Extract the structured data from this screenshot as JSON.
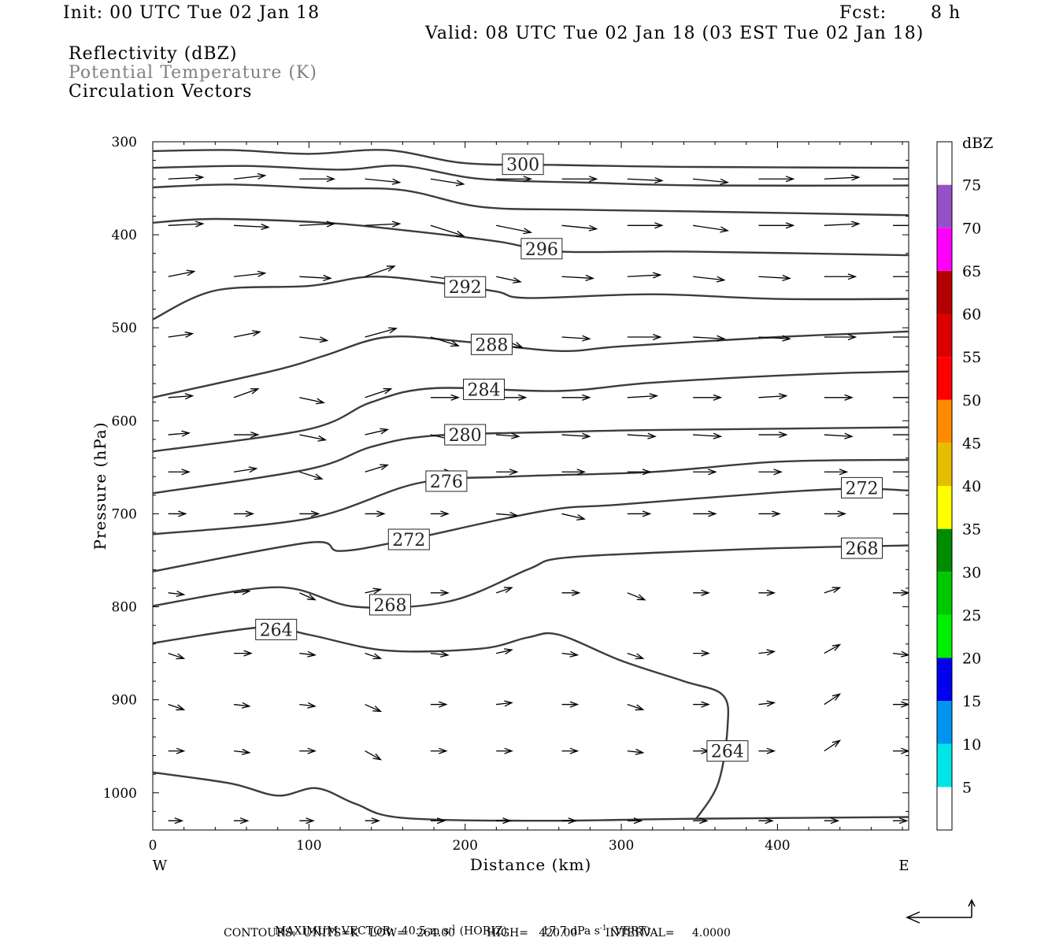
{
  "header": {
    "init": "Init: 00 UTC Tue 02 Jan 18",
    "fcst_label": "Fcst:",
    "fcst_value": "8 h",
    "valid": "Valid: 08 UTC Tue 02 Jan 18 (03 EST Tue 02 Jan 18)"
  },
  "fields": {
    "reflectivity": "Reflectivity (dBZ)",
    "theta": "Potential Temperature (K)",
    "vectors": "Circulation Vectors"
  },
  "footer": {
    "max_vector_label": "MAXIMUM VECTOR:",
    "horiz_value": "40.5 m s",
    "horiz_unit_label": "(HORIZ)",
    "vert_value": "17.7 dPa s",
    "vert_unit_label": "(VERT)",
    "exponent": "-1",
    "contours_line": "CONTOURS:  UNITS=K   LOW=   264.00         HIGH=   420.00        INTERVAL=     4.0000"
  },
  "chart_data": {
    "type": "line",
    "xlabel": "Distance (km)",
    "ylabel": "Pressure (hPa)",
    "xlim": [
      0,
      484
    ],
    "ylim": [
      300,
      1040
    ],
    "y_reversed": true,
    "x_ticks": [
      0,
      100,
      200,
      300,
      400
    ],
    "y_ticks": [
      300,
      400,
      500,
      600,
      700,
      800,
      900,
      1000
    ],
    "x_end_labels": {
      "left": "W",
      "right": "E"
    },
    "grid": false,
    "series": [
      {
        "name": "300",
        "values": [
          [
            0,
            310
          ],
          [
            50,
            309
          ],
          [
            100,
            313
          ],
          [
            150,
            309
          ],
          [
            200,
            323
          ],
          [
            260,
            325
          ],
          [
            340,
            327
          ],
          [
            484,
            328
          ]
        ]
      },
      {
        "name": "",
        "values": [
          [
            0,
            328
          ],
          [
            60,
            326
          ],
          [
            120,
            330
          ],
          [
            160,
            326
          ],
          [
            210,
            340
          ],
          [
            280,
            344
          ],
          [
            350,
            347
          ],
          [
            484,
            347
          ]
        ]
      },
      {
        "name": "",
        "values": [
          [
            0,
            349
          ],
          [
            50,
            346
          ],
          [
            110,
            350
          ],
          [
            160,
            352
          ],
          [
            210,
            370
          ],
          [
            270,
            373
          ],
          [
            350,
            375
          ],
          [
            484,
            379
          ]
        ]
      },
      {
        "name": "296",
        "values": [
          [
            0,
            387
          ],
          [
            40,
            383
          ],
          [
            110,
            387
          ],
          [
            160,
            395
          ],
          [
            220,
            407
          ],
          [
            260,
            418
          ],
          [
            340,
            418
          ],
          [
            484,
            422
          ]
        ]
      },
      {
        "name": "292",
        "values": [
          [
            0,
            491
          ],
          [
            40,
            460
          ],
          [
            100,
            455
          ],
          [
            140,
            445
          ],
          [
            180,
            451
          ],
          [
            220,
            461
          ],
          [
            240,
            468
          ],
          [
            320,
            464
          ],
          [
            400,
            469
          ],
          [
            484,
            469
          ]
        ]
      },
      {
        "name": "288",
        "values": [
          [
            0,
            575
          ],
          [
            80,
            545
          ],
          [
            110,
            530
          ],
          [
            150,
            510
          ],
          [
            200,
            515
          ],
          [
            260,
            525
          ],
          [
            300,
            520
          ],
          [
            400,
            510
          ],
          [
            484,
            504
          ]
        ]
      },
      {
        "name": "284",
        "values": [
          [
            0,
            633
          ],
          [
            100,
            609
          ],
          [
            140,
            580
          ],
          [
            180,
            565
          ],
          [
            260,
            568
          ],
          [
            320,
            559
          ],
          [
            420,
            550
          ],
          [
            484,
            547
          ]
        ]
      },
      {
        "name": "280",
        "values": [
          [
            0,
            678
          ],
          [
            100,
            652
          ],
          [
            140,
            628
          ],
          [
            180,
            616
          ],
          [
            260,
            612
          ],
          [
            320,
            610
          ],
          [
            484,
            607
          ]
        ]
      },
      {
        "name": "276",
        "values": [
          [
            0,
            722
          ],
          [
            100,
            705
          ],
          [
            170,
            667
          ],
          [
            230,
            660
          ],
          [
            320,
            655
          ],
          [
            400,
            644
          ],
          [
            484,
            642
          ]
        ]
      },
      {
        "name": "272",
        "values": [
          [
            0,
            762
          ],
          [
            100,
            731
          ],
          [
            120,
            740
          ],
          [
            160,
            729
          ],
          [
            250,
            697
          ],
          [
            300,
            690
          ],
          [
            400,
            677
          ],
          [
            450,
            673
          ],
          [
            484,
            675
          ]
        ]
      },
      {
        "name": "268",
        "values": [
          [
            0,
            799
          ],
          [
            80,
            779
          ],
          [
            130,
            800
          ],
          [
            190,
            794
          ],
          [
            240,
            760
          ],
          [
            260,
            748
          ],
          [
            320,
            742
          ],
          [
            400,
            737
          ],
          [
            484,
            734
          ]
        ]
      },
      {
        "name": "264",
        "values": [
          [
            0,
            839
          ],
          [
            70,
            822
          ],
          [
            100,
            830
          ],
          [
            150,
            847
          ],
          [
            210,
            845
          ],
          [
            240,
            833
          ],
          [
            260,
            830
          ],
          [
            300,
            858
          ],
          [
            340,
            880
          ],
          [
            365,
            895
          ],
          [
            368,
            930
          ],
          [
            362,
            990
          ],
          [
            348,
            1028
          ]
        ]
      },
      {
        "name": "",
        "values": [
          [
            0,
            978
          ],
          [
            50,
            990
          ],
          [
            80,
            1003
          ],
          [
            105,
            995
          ],
          [
            130,
            1012
          ],
          [
            160,
            1027
          ],
          [
            250,
            1030
          ],
          [
            340,
            1028
          ],
          [
            484,
            1026
          ]
        ]
      }
    ],
    "vectors": {
      "x": [
        20,
        62,
        104,
        146,
        188,
        230,
        272,
        314,
        356,
        398,
        440,
        484
      ],
      "levels": [
        340,
        390,
        445,
        510,
        575,
        615,
        655,
        700,
        785,
        850,
        905,
        955,
        1030
      ],
      "u": [
        [
          2.0,
          1.8,
          2.0,
          2.0,
          1.9,
          2.0,
          2.0,
          2.0,
          2.0,
          2.0,
          2.0,
          1.9
        ],
        [
          2.0,
          2.0,
          2.0,
          2.0,
          1.9,
          2.0,
          2.0,
          2.0,
          2.0,
          2.0,
          2.0,
          1.9
        ],
        [
          1.5,
          1.8,
          1.8,
          1.7,
          1.6,
          1.4,
          1.8,
          1.9,
          1.8,
          1.8,
          1.8,
          1.9
        ],
        [
          1.4,
          1.5,
          1.6,
          1.8,
          1.6,
          1.5,
          1.6,
          1.9,
          1.8,
          1.8,
          1.8,
          1.9
        ],
        [
          1.4,
          1.4,
          1.4,
          1.5,
          1.6,
          1.7,
          1.6,
          1.7,
          1.6,
          1.6,
          1.6,
          1.8
        ],
        [
          1.2,
          1.4,
          1.5,
          1.3,
          1.3,
          1.3,
          1.6,
          1.6,
          1.6,
          1.6,
          1.6,
          1.8
        ],
        [
          1.2,
          1.3,
          1.3,
          1.3,
          1.2,
          1.2,
          1.3,
          1.3,
          1.3,
          1.3,
          1.3,
          1.8
        ],
        [
          1.0,
          1.1,
          1.1,
          1.1,
          1.0,
          1.2,
          1.3,
          1.3,
          1.3,
          1.2,
          1.2,
          1.8
        ],
        [
          0.9,
          0.9,
          0.9,
          0.9,
          1.0,
          0.9,
          1.0,
          1.0,
          0.9,
          0.9,
          0.9,
          0.9
        ],
        [
          0.9,
          1.0,
          0.9,
          0.9,
          1.0,
          0.9,
          0.9,
          0.9,
          0.9,
          0.9,
          0.9,
          0.9
        ],
        [
          0.9,
          0.9,
          0.9,
          0.9,
          0.9,
          0.9,
          0.9,
          0.9,
          0.9,
          0.9,
          0.9,
          0.9
        ],
        [
          0.9,
          0.9,
          0.9,
          0.9,
          0.9,
          0.9,
          0.9,
          0.9,
          0.9,
          0.9,
          0.9,
          0.9
        ],
        [
          0.8,
          0.8,
          0.8,
          0.8,
          0.8,
          0.8,
          0.8,
          0.8,
          0.8,
          0.8,
          0.8,
          0.8
        ]
      ],
      "w": [
        [
          -0.1,
          -0.2,
          0.0,
          0.2,
          0.3,
          0.0,
          0.0,
          0.1,
          0.2,
          0.0,
          -0.1,
          0.0
        ],
        [
          -0.1,
          0.1,
          -0.1,
          -0.1,
          0.6,
          0.4,
          0.2,
          0.0,
          0.3,
          0.0,
          -0.1,
          0.0
        ],
        [
          -0.3,
          -0.2,
          0.1,
          -0.6,
          0.2,
          0.3,
          0.1,
          -0.1,
          0.2,
          0.1,
          0.0,
          0.0
        ],
        [
          -0.2,
          -0.3,
          0.2,
          -0.5,
          0.5,
          0.6,
          0.1,
          0.0,
          0.1,
          0.1,
          0.0,
          0.0
        ],
        [
          -0.1,
          -0.5,
          0.3,
          -0.5,
          0.0,
          0.0,
          0.0,
          -0.1,
          0.0,
          -0.1,
          0.0,
          0.0
        ],
        [
          -0.1,
          0.0,
          0.3,
          -0.3,
          0.3,
          0.1,
          0.1,
          0.1,
          0.1,
          0.0,
          0.1,
          0.0
        ],
        [
          0.0,
          -0.2,
          0.4,
          -0.4,
          0.0,
          0.0,
          0.0,
          0.0,
          0.0,
          0.0,
          0.0,
          0.0
        ],
        [
          0.0,
          0.0,
          0.0,
          0.0,
          0.0,
          0.1,
          0.3,
          0.0,
          0.0,
          0.0,
          0.0,
          0.0
        ],
        [
          0.1,
          -0.1,
          0.4,
          -0.2,
          0.0,
          -0.3,
          0.0,
          0.4,
          0.0,
          0.0,
          -0.3,
          0.0
        ],
        [
          0.3,
          0.0,
          0.1,
          0.3,
          0.1,
          -0.2,
          0.1,
          0.3,
          0.0,
          -0.1,
          -0.5,
          0.1
        ],
        [
          0.3,
          0.1,
          0.1,
          0.4,
          0.0,
          -0.1,
          0.0,
          0.3,
          0.0,
          -0.1,
          -0.6,
          0.0
        ],
        [
          0.0,
          0.1,
          0.0,
          0.5,
          0.0,
          0.0,
          0.0,
          0.1,
          0.0,
          0.0,
          -0.6,
          0.0
        ],
        [
          0.0,
          0.0,
          0.0,
          0.0,
          0.0,
          0.0,
          0.0,
          0.0,
          0.0,
          0.0,
          0.0,
          0.0
        ]
      ]
    },
    "colorbar": {
      "title": "dBZ",
      "range": [
        0,
        80
      ],
      "labels": [
        "5",
        "10",
        "15",
        "20",
        "25",
        "30",
        "35",
        "40",
        "45",
        "50",
        "55",
        "60",
        "65",
        "70",
        "75"
      ],
      "bins": [
        {
          "from": 0,
          "to": 5,
          "color": "#ffffff"
        },
        {
          "from": 5,
          "to": 10,
          "color": "#00e5e5"
        },
        {
          "from": 10,
          "to": 15,
          "color": "#0096f0"
        },
        {
          "from": 15,
          "to": 20,
          "color": "#0000ee"
        },
        {
          "from": 20,
          "to": 25,
          "color": "#00ee00"
        },
        {
          "from": 25,
          "to": 30,
          "color": "#00c800"
        },
        {
          "from": 30,
          "to": 35,
          "color": "#008c00"
        },
        {
          "from": 35,
          "to": 40,
          "color": "#ffff00"
        },
        {
          "from": 40,
          "to": 45,
          "color": "#e6be00"
        },
        {
          "from": 45,
          "to": 50,
          "color": "#ff8c00"
        },
        {
          "from": 50,
          "to": 55,
          "color": "#ff0000"
        },
        {
          "from": 55,
          "to": 60,
          "color": "#dc0000"
        },
        {
          "from": 60,
          "to": 65,
          "color": "#b40000"
        },
        {
          "from": 65,
          "to": 70,
          "color": "#ff00ff"
        },
        {
          "from": 70,
          "to": 75,
          "color": "#9650c8"
        },
        {
          "from": 75,
          "to": 80,
          "color": "#ffffff"
        }
      ]
    },
    "colors": {
      "contour": "#3c3c3c",
      "theta_title": "#808080",
      "vector": "#000000"
    }
  }
}
